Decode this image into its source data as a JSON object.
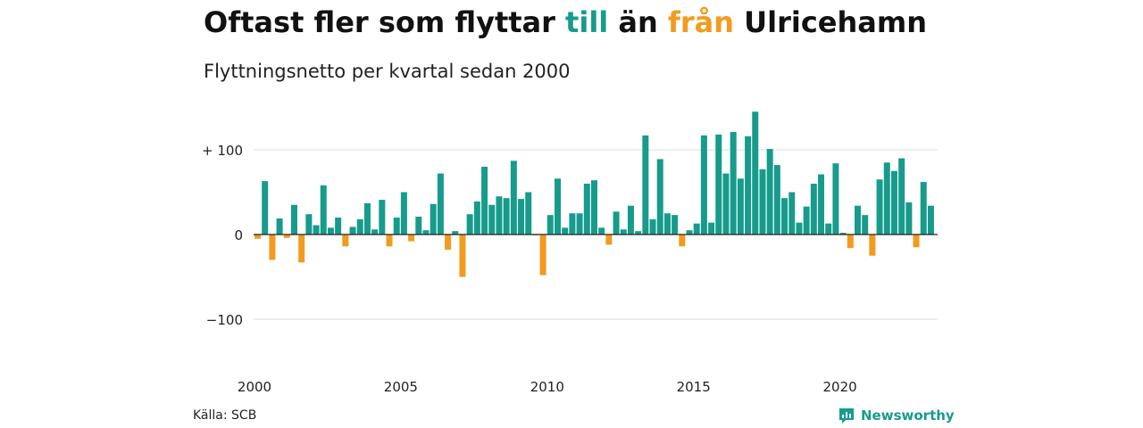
{
  "header": {
    "title_prefix": "Oftast fler som flyttar ",
    "title_pos_word": "till",
    "title_middle": " än ",
    "title_neg_word": "från",
    "title_suffix": " Ulricehamn",
    "subtitle": "Flyttningsnetto per kvartal sedan 2000"
  },
  "footer": {
    "source": "Källa: SCB",
    "brand": "Newsworthy",
    "brand_icon": "newsworthy-logo-icon"
  },
  "colors": {
    "positive": "#169b8c",
    "negative": "#f29b1f",
    "grid": "#dcdcdc",
    "zero_line": "#222222"
  },
  "chart_data": {
    "type": "bar",
    "frequency": "quarterly",
    "x_start": "2000-Q1",
    "ylim": [
      -130,
      150
    ],
    "y_ticks": [
      100,
      0,
      -100
    ],
    "y_tick_labels": [
      "+ 100",
      "0",
      "−100"
    ],
    "x_tick_labels": [
      "2000",
      "2005",
      "2010",
      "2015",
      "2020"
    ],
    "grid": true,
    "values": [
      -5,
      63,
      -30,
      19,
      -4,
      35,
      -33,
      24,
      11,
      58,
      8,
      20,
      -14,
      9,
      18,
      37,
      6,
      41,
      -14,
      20,
      50,
      -8,
      21,
      5,
      36,
      72,
      -18,
      4,
      -50,
      24,
      39,
      80,
      35,
      45,
      43,
      87,
      42,
      50,
      -1,
      -48,
      23,
      66,
      8,
      25,
      25,
      60,
      64,
      8,
      -12,
      27,
      6,
      34,
      4,
      117,
      18,
      89,
      25,
      23,
      -14,
      5,
      13,
      117,
      14,
      118,
      72,
      121,
      66,
      116,
      145,
      77,
      101,
      82,
      43,
      50,
      14,
      33,
      60,
      71,
      13,
      84,
      2,
      -16,
      34,
      23,
      -25,
      65,
      85,
      75,
      90,
      38,
      -15,
      62,
      34
    ]
  }
}
